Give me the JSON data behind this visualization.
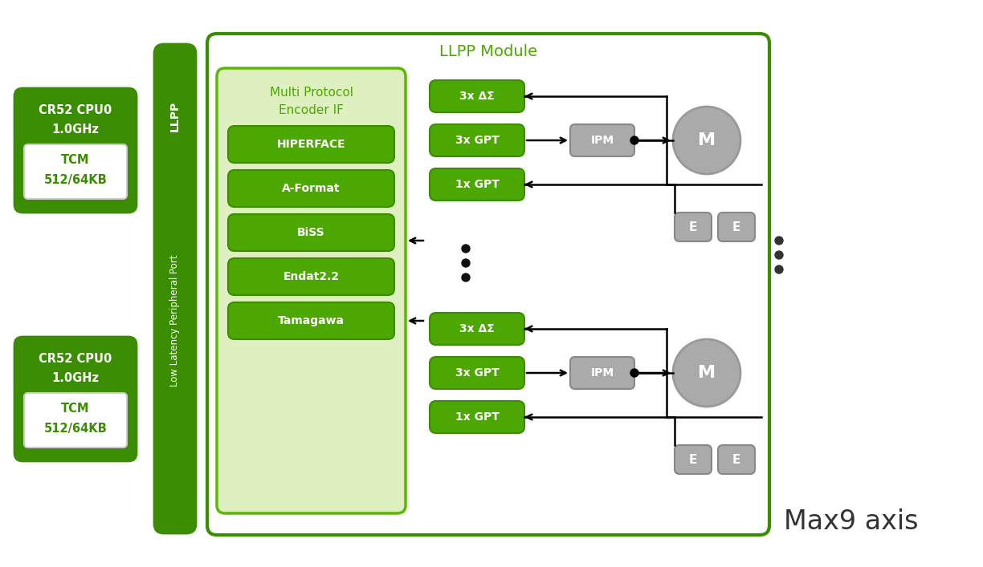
{
  "bg_color": "#ffffff",
  "green_dark": "#3a8c00",
  "green_mid": "#4ca800",
  "green_light": "#dff0c0",
  "green_border": "#5ab800",
  "gray_box": "#aaaaaa",
  "gray_circle": "#aaaaaa",
  "text_white": "#ffffff",
  "text_dark": "#333333",
  "text_green": "#4ca800",
  "title": "LLPP Module",
  "subtitle": "Max9 axis",
  "encoder_labels": [
    "HIPERFACE",
    "A-Format",
    "BiSS",
    "Endat2.2",
    "Tamagawa"
  ],
  "sig_labels": [
    "3x ΔΣ",
    "3x GPT",
    "1x GPT"
  ]
}
